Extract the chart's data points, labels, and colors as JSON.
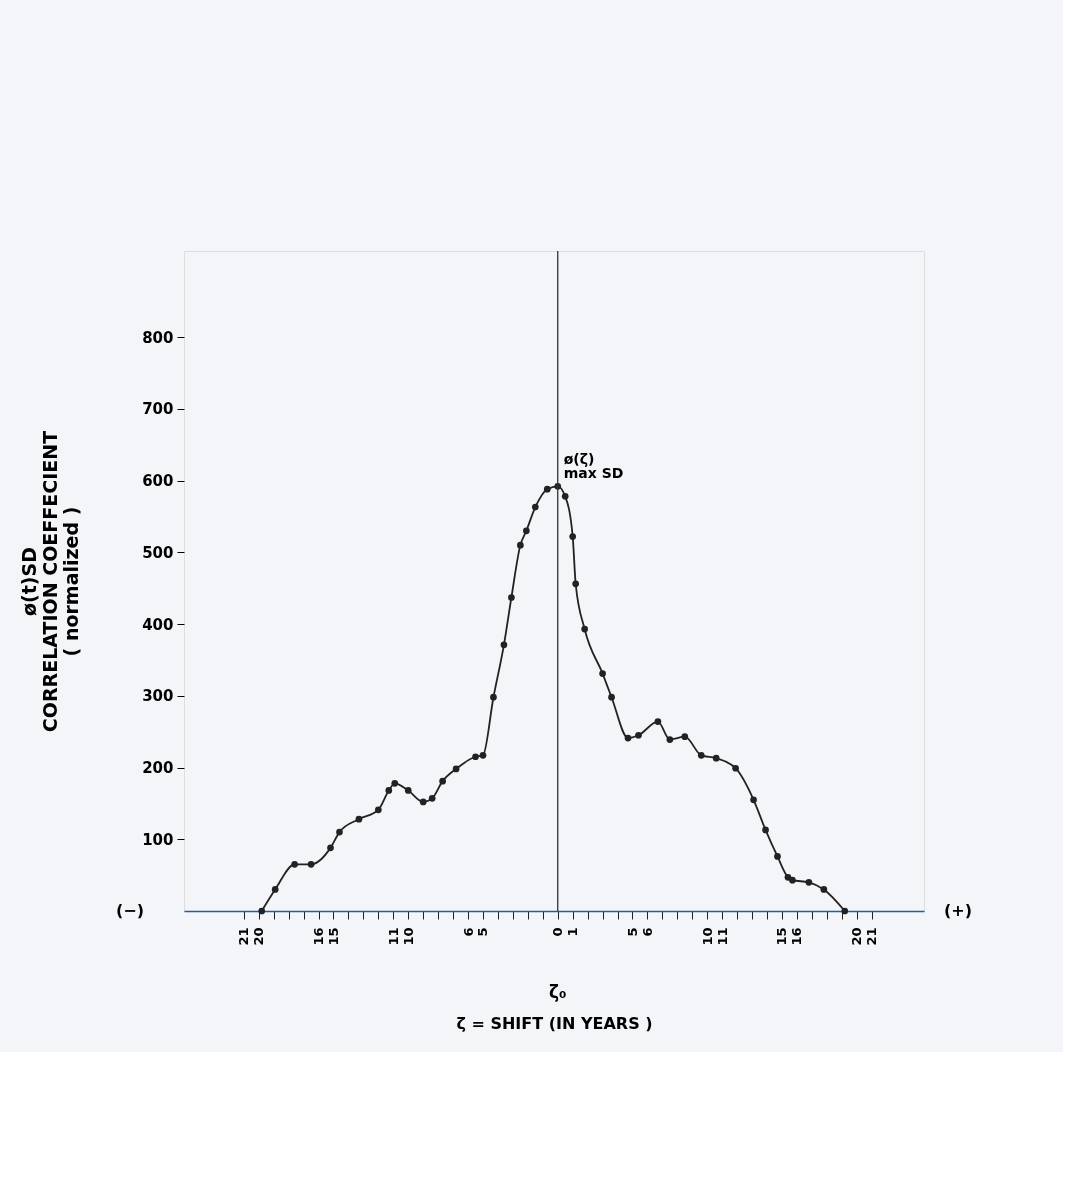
{
  "chart_data": {
    "type": "line",
    "xlabel": "ζ = SHIFT    (IN YEARS )",
    "ylabel": "ø(t)SD\nCORRELATION  COEFFECIENT\n( normalized )",
    "x": [
      -19.8,
      -18.9,
      -17.6,
      -16.5,
      -15.2,
      -14.6,
      -13.3,
      -12,
      -11.3,
      -10.9,
      -10,
      -9,
      -8.4,
      -7.7,
      -6.8,
      -5.5,
      -5,
      -4.3,
      -3.6,
      -3.1,
      -2.5,
      -2.1,
      -1.5,
      -0.7,
      0,
      0.5,
      1,
      1.2,
      1.8,
      3,
      3.6,
      4.7,
      5.4,
      6.7,
      7.5,
      8.5,
      9.6,
      10.6,
      11.9,
      13.1,
      13.9,
      14.7,
      15.4,
      15.7,
      16.8,
      17.8,
      19.2
    ],
    "series": [
      {
        "color": "#222222",
        "values": [
          0,
          30,
          65,
          65,
          88,
          110,
          128,
          141,
          168,
          178,
          168,
          152,
          157,
          181,
          198,
          215,
          217,
          298,
          371,
          437,
          510,
          530,
          563,
          588,
          592,
          578,
          522,
          456,
          393,
          331,
          298,
          241,
          245,
          264,
          239,
          243,
          217,
          213,
          199,
          155,
          113,
          76,
          47,
          43,
          40,
          30,
          0
        ]
      }
    ],
    "xlim": [
      -25,
      24.5
    ],
    "ylim": [
      0,
      920
    ],
    "xticks": [
      {
        "value": -21,
        "label": "21"
      },
      {
        "value": -20,
        "label": "20"
      },
      {
        "value": -19,
        "label": null
      },
      {
        "value": -18,
        "label": null
      },
      {
        "value": -17,
        "label": null
      },
      {
        "value": -16,
        "label": "16"
      },
      {
        "value": -15,
        "label": "15"
      },
      {
        "value": -14,
        "label": null
      },
      {
        "value": -13,
        "label": null
      },
      {
        "value": -12,
        "label": null
      },
      {
        "value": -11,
        "label": "11"
      },
      {
        "value": -10,
        "label": "10"
      },
      {
        "value": -9,
        "label": null
      },
      {
        "value": -8,
        "label": null
      },
      {
        "value": -7,
        "label": null
      },
      {
        "value": -6,
        "label": "6"
      },
      {
        "value": -5,
        "label": "5"
      },
      {
        "value": -4,
        "label": null
      },
      {
        "value": -3,
        "label": null
      },
      {
        "value": -2,
        "label": null
      },
      {
        "value": -1,
        "label": null
      },
      0,
      1,
      {
        "value": 2,
        "label": null
      },
      {
        "value": 3,
        "label": null
      },
      {
        "value": 4,
        "label": null
      },
      5,
      6,
      {
        "value": 7,
        "label": null
      },
      {
        "value": 8,
        "label": null
      },
      {
        "value": 9,
        "label": null
      },
      10,
      11,
      {
        "value": 12,
        "label": null
      },
      {
        "value": 13,
        "label": null
      },
      {
        "value": 14,
        "label": null
      },
      15,
      16,
      {
        "value": 17,
        "label": null
      },
      {
        "value": 18,
        "label": null
      },
      {
        "value": 19,
        "label": null
      },
      20,
      21
    ],
    "yticks": [
      100,
      200,
      300,
      400,
      500,
      600,
      700,
      800
    ],
    "ref_lines": [
      {
        "axis": "x",
        "value": 0,
        "color": "#333333"
      }
    ],
    "annotations": [
      {
        "text": "ø(ζ)\nmax SD",
        "x": 0,
        "y": 592
      },
      "(−)",
      "(+)",
      "ζ₀"
    ],
    "marker": "circle",
    "line_style": "solid",
    "grid": false
  }
}
